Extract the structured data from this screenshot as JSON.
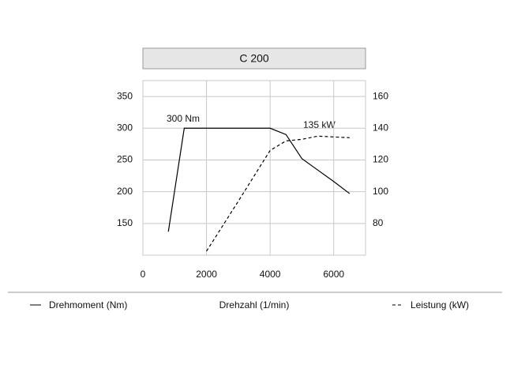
{
  "chart_data": {
    "type": "line",
    "title": "C 200",
    "x_label": "Drehzahl (1/min)",
    "xlim": [
      0,
      7000
    ],
    "xticks": [
      0,
      2000,
      4000,
      6000
    ],
    "ylim": [
      100,
      375
    ],
    "yticks": [
      150,
      200,
      250,
      300,
      350
    ],
    "y2lim": [
      60,
      170
    ],
    "y2ticks": [
      80,
      100,
      120,
      140,
      160
    ],
    "grid": true,
    "series": [
      {
        "name": "Drehmoment (Nm)",
        "color": "#000000",
        "line_style": "solid",
        "x": [
          800,
          1300,
          4000,
          4500,
          5000,
          5500,
          6000,
          6500
        ],
        "values": [
          137,
          300,
          300,
          290,
          252,
          234,
          216,
          197
        ]
      },
      {
        "name": "Leistung (kW)",
        "color": "#000000",
        "line_style": "dashed",
        "axis": "y2",
        "x": [
          2000,
          3000,
          4000,
          4500,
          5000,
          5500,
          6000,
          6500
        ],
        "values": [
          62.5,
          94,
          126,
          132,
          133,
          135,
          134.5,
          134
        ]
      }
    ],
    "annotations": [
      "300 Nm",
      "135 kW"
    ]
  }
}
